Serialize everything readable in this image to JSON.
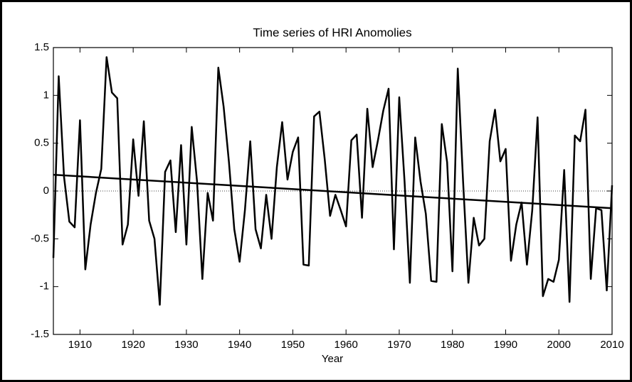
{
  "chart_data": {
    "type": "line",
    "title": "Time series of HRI Anomolies",
    "x_label": "Year",
    "x": [
      1905,
      1906,
      1907,
      1908,
      1909,
      1910,
      1911,
      1912,
      1913,
      1914,
      1915,
      1916,
      1917,
      1918,
      1919,
      1920,
      1921,
      1922,
      1923,
      1924,
      1925,
      1926,
      1927,
      1928,
      1929,
      1930,
      1931,
      1932,
      1933,
      1934,
      1935,
      1936,
      1937,
      1938,
      1939,
      1940,
      1941,
      1942,
      1943,
      1944,
      1945,
      1946,
      1947,
      1948,
      1949,
      1950,
      1951,
      1952,
      1953,
      1954,
      1955,
      1956,
      1957,
      1958,
      1959,
      1960,
      1961,
      1962,
      1963,
      1964,
      1965,
      1966,
      1967,
      1968,
      1969,
      1970,
      1971,
      1972,
      1973,
      1974,
      1975,
      1976,
      1977,
      1978,
      1979,
      1980,
      1981,
      1982,
      1983,
      1984,
      1985,
      1986,
      1987,
      1988,
      1989,
      1990,
      1991,
      1992,
      1993,
      1994,
      1995,
      1996,
      1997,
      1998,
      1999,
      2000,
      2001,
      2002,
      2003,
      2004,
      2005,
      2006,
      2007,
      2008,
      2009,
      2010
    ],
    "series": [
      {
        "color": "#000000",
        "values": [
          -0.7,
          1.2,
          0.15,
          -0.32,
          -0.38,
          0.74,
          -0.82,
          -0.35,
          -0.02,
          0.23,
          1.4,
          1.03,
          0.97,
          -0.56,
          -0.35,
          0.54,
          -0.05,
          0.73,
          -0.31,
          -0.5,
          -1.19,
          0.2,
          0.32,
          -0.43,
          0.48,
          -0.56,
          0.67,
          0.1,
          -0.92,
          -0.02,
          -0.31,
          1.29,
          0.88,
          0.3,
          -0.4,
          -0.74,
          -0.2,
          0.52,
          -0.4,
          -0.6,
          -0.04,
          -0.5,
          0.25,
          0.72,
          0.12,
          0.41,
          0.56,
          -0.77,
          -0.78,
          0.78,
          0.83,
          0.33,
          -0.26,
          -0.04,
          -0.2,
          -0.37,
          0.53,
          0.59,
          -0.28,
          0.86,
          0.25,
          0.53,
          0.84,
          1.07,
          -0.61,
          0.98,
          0.1,
          -0.96,
          0.56,
          0.1,
          -0.24,
          -0.94,
          -0.95,
          0.7,
          0.3,
          -0.84,
          1.28,
          0.1,
          -0.96,
          -0.28,
          -0.57,
          -0.5,
          0.52,
          0.85,
          0.31,
          0.44,
          -0.73,
          -0.35,
          -0.12,
          -0.77,
          -0.2,
          0.77,
          -1.1,
          -0.92,
          -0.95,
          -0.72,
          0.22,
          -1.16,
          0.58,
          0.52,
          0.85,
          -0.92,
          -0.18,
          -0.2,
          -1.04,
          0.06
        ]
      },
      {
        "color": "#000000",
        "x": [
          1905,
          2010
        ],
        "values": [
          0.17,
          -0.18
        ]
      }
    ],
    "xlim": [
      1905,
      2010
    ],
    "xticks": [
      1910,
      1920,
      1930,
      1940,
      1950,
      1960,
      1970,
      1980,
      1990,
      2000,
      2010
    ],
    "ylim": [
      -1.5,
      1.5
    ],
    "yticks": [
      -1.5,
      -1,
      -0.5,
      0,
      0.5,
      1,
      1.5
    ],
    "hline": 0
  }
}
